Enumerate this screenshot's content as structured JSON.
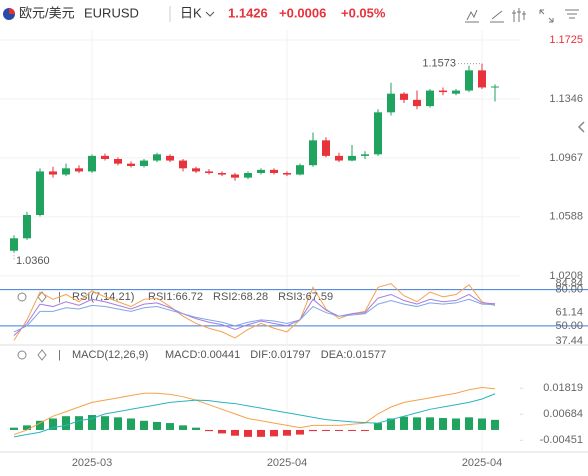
{
  "header": {
    "pair": "欧元/美元",
    "symbol": "EURUSD",
    "period": "日K",
    "price": "1.1426",
    "change": "+0.0006",
    "change_pct": "+0.05%"
  },
  "chart_data": [
    {
      "type": "candlestick",
      "categories": [
        null,
        null,
        null,
        null,
        null,
        null,
        "2025-03",
        null,
        null,
        null,
        null,
        null,
        null,
        null,
        null,
        null,
        null,
        null,
        null,
        null,
        null,
        "2025-04",
        null,
        null,
        null,
        null,
        null,
        null,
        null,
        null,
        null,
        null,
        null,
        null,
        null,
        null,
        "2025-04",
        null
      ],
      "open": [
        1.037,
        1.045,
        1.06,
        1.088,
        1.086,
        1.09,
        1.088,
        1.098,
        1.096,
        1.093,
        1.0915,
        1.095,
        1.098,
        1.095,
        1.09,
        1.088,
        1.087,
        1.086,
        1.084,
        1.087,
        1.089,
        1.087,
        1.086,
        1.092,
        1.108,
        1.098,
        1.095,
        1.098,
        1.099,
        1.126,
        1.138,
        1.134,
        1.13,
        1.14,
        1.138,
        1.14,
        1.153,
        1.142
      ],
      "high": [
        1.047,
        1.062,
        1.09,
        1.091,
        1.093,
        1.092,
        1.099,
        1.0995,
        1.097,
        1.0945,
        1.096,
        1.1,
        1.099,
        1.096,
        1.091,
        1.0895,
        1.088,
        1.087,
        1.088,
        1.09,
        1.09,
        1.088,
        1.093,
        1.113,
        1.11,
        1.1,
        1.105,
        1.101,
        1.128,
        1.145,
        1.139,
        1.14,
        1.141,
        1.142,
        1.141,
        1.156,
        1.1573,
        1.144
      ],
      "low": [
        1.036,
        1.044,
        1.059,
        1.084,
        1.085,
        1.087,
        1.087,
        1.095,
        1.092,
        1.0905,
        1.0905,
        1.094,
        1.094,
        1.088,
        1.087,
        1.086,
        1.085,
        1.082,
        1.083,
        1.086,
        1.086,
        1.085,
        1.0855,
        1.091,
        1.097,
        1.094,
        1.0945,
        1.096,
        1.098,
        1.124,
        1.132,
        1.128,
        1.129,
        1.137,
        1.137,
        1.139,
        1.141,
        1.133
      ],
      "close": [
        1.045,
        1.06,
        1.088,
        1.086,
        1.09,
        1.088,
        1.098,
        1.096,
        1.093,
        1.0915,
        1.095,
        1.099,
        1.095,
        1.09,
        1.088,
        1.087,
        1.086,
        1.084,
        1.087,
        1.089,
        1.087,
        1.086,
        1.092,
        1.108,
        1.098,
        1.095,
        1.098,
        1.099,
        1.126,
        1.138,
        1.134,
        1.13,
        1.14,
        1.139,
        1.14,
        1.153,
        1.142,
        1.1426
      ],
      "up_color": "#1fa35f",
      "down_color": "#e8323c",
      "ylim": [
        1.0169,
        1.1783
      ],
      "yticks": [
        1.1725,
        1.1346,
        1.0967,
        1.0588,
        1.0208
      ],
      "annotations": [
        "1.1573",
        "1.0360"
      ],
      "grid": true
    },
    {
      "type": "line",
      "title": "RSI(7,14,21)",
      "series": [
        {
          "name": "RSI1:66.72",
          "color": "#f5a34a",
          "values": [
            38,
            55,
            78,
            72,
            76,
            70,
            79,
            74,
            70,
            66,
            72,
            73,
            66,
            58,
            52,
            48,
            45,
            40,
            47,
            52,
            48,
            45,
            55,
            82,
            64,
            56,
            60,
            62,
            82,
            85,
            75,
            70,
            78,
            74,
            76,
            84,
            70,
            66.72
          ]
        },
        {
          "name": "RSI2:68.28",
          "color": "#a77be0",
          "values": [
            42,
            52,
            68,
            66,
            70,
            67,
            72,
            70,
            67,
            64,
            68,
            69,
            65,
            60,
            56,
            53,
            51,
            47,
            51,
            54,
            52,
            50,
            55,
            72,
            63,
            58,
            60,
            61,
            73,
            76,
            71,
            68,
            72,
            70,
            71,
            76,
            69,
            68.28
          ]
        },
        {
          "name": "RSI3:67.59",
          "color": "#7ea6e8",
          "values": [
            45,
            50,
            62,
            62,
            65,
            64,
            67,
            66,
            64,
            62,
            65,
            66,
            63,
            60,
            57,
            55,
            53,
            50,
            53,
            55,
            54,
            52,
            55,
            66,
            61,
            58,
            59,
            60,
            68,
            71,
            68,
            66,
            69,
            68,
            69,
            72,
            68,
            67.59
          ]
        }
      ],
      "ylim": [
        30,
        88
      ],
      "yticks": [
        {
          "value": 80,
          "label": "80.00"
        },
        84.84,
        61.14,
        {
          "value": 50,
          "label": "50.00"
        },
        37.44
      ],
      "line_color": "#3f7be0"
    },
    {
      "type": "macd",
      "title": "MACD(12,26,9)",
      "series": [
        {
          "name": "MACD:0.00441",
          "color": "#a77be0",
          "values": [
            0.001,
            0.002,
            0.004,
            0.005,
            0.006,
            0.006,
            0.0065,
            0.006,
            0.0055,
            0.005,
            0.004,
            0.0035,
            0.003,
            0.002,
            0.001,
            -0.0005,
            -0.0015,
            -0.0025,
            -0.003,
            -0.003,
            -0.0028,
            -0.0025,
            -0.002,
            -0.0005,
            -0.0004,
            -0.0003,
            -0.0002,
            -0.0001,
            0.003,
            0.005,
            0.0058,
            0.0055,
            0.0055,
            0.0052,
            0.005,
            0.0055,
            0.005,
            0.00441
          ]
        },
        {
          "name": "DIF:0.01797",
          "color": "#f5a34a",
          "values": [
            -0.002,
            0,
            0.003,
            0.006,
            0.008,
            0.01,
            0.012,
            0.013,
            0.014,
            0.015,
            0.016,
            0.016,
            0.0155,
            0.0145,
            0.013,
            0.011,
            0.009,
            0.007,
            0.005,
            0.004,
            0.003,
            0.002,
            0.001,
            0.002,
            0.002,
            0.002,
            0.0025,
            0.003,
            0.007,
            0.01,
            0.012,
            0.013,
            0.014,
            0.015,
            0.016,
            0.0175,
            0.0185,
            0.01797
          ]
        },
        {
          "name": "DEA:0.01577",
          "color": "#2bb3c0",
          "values": [
            -0.003,
            -0.002,
            -0.001,
            0.001,
            0.002,
            0.004,
            0.005,
            0.007,
            0.008,
            0.009,
            0.01,
            0.011,
            0.012,
            0.0125,
            0.013,
            0.0128,
            0.012,
            0.0115,
            0.0105,
            0.0095,
            0.0085,
            0.0075,
            0.0065,
            0.0055,
            0.0045,
            0.004,
            0.0035,
            0.0032,
            0.003,
            0.0045,
            0.006,
            0.0075,
            0.009,
            0.01,
            0.011,
            0.012,
            0.0135,
            0.01577
          ]
        }
      ],
      "up_color": "#1fa35f",
      "down_color": "#e8323c",
      "ylim": [
        -0.0096,
        0.0283
      ],
      "yticks": [
        0.01819,
        0.00684,
        -0.00451
      ]
    }
  ]
}
